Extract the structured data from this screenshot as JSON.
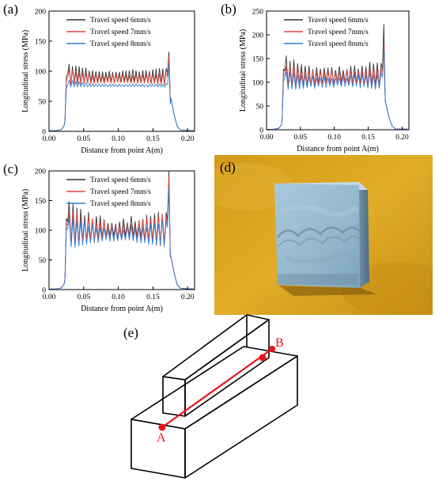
{
  "panels": {
    "a": "(a)",
    "b": "(b)",
    "c": "(c)",
    "d": "(d)",
    "e": "(e)"
  },
  "schematic": {
    "point_a": "A",
    "point_b": "B"
  },
  "colors": {
    "series_6": "#333333",
    "series_7": "#e8403a",
    "series_8": "#2f7fd0",
    "photo_background": "#d9a520",
    "path_line": "#e8141c"
  },
  "chart_data": [
    {
      "type": "line",
      "panel": "a",
      "xlabel": "Distance from point A(m)",
      "ylabel": "Longitudinal stress (MPa)",
      "xlim": [
        0,
        0.21
      ],
      "ylim": [
        0,
        200
      ],
      "xticks": [
        "0.00",
        "0.05",
        "0.10",
        "0.15",
        "0.20"
      ],
      "yticks": [
        "0",
        "50",
        "100",
        "150",
        "200"
      ],
      "legend_position": "top-center",
      "start_x": 0.025,
      "end_x": 0.175,
      "series": [
        {
          "name": "Travel speed 6mm/s",
          "plateau": 90,
          "amp": 14,
          "start_peak": 115,
          "end_peak": 132,
          "cycles": 30,
          "taper": 0.25
        },
        {
          "name": "Travel speed 7mm/s",
          "plateau": 86,
          "amp": 10,
          "start_peak": 105,
          "end_peak": 125,
          "cycles": 30,
          "taper": 0.3
        },
        {
          "name": "Travel speed 8mm/s",
          "plateau": 76,
          "amp": 3,
          "start_peak": 90,
          "end_peak": 112,
          "cycles": 30,
          "taper": 0.3
        }
      ]
    },
    {
      "type": "line",
      "panel": "b",
      "xlabel": "Distance from point A(m)",
      "ylabel": "Longitudinal stress (MPa)",
      "xlim": [
        0,
        0.21
      ],
      "ylim": [
        0,
        250
      ],
      "xticks": [
        "0.00",
        "0.05",
        "0.10",
        "0.15",
        "0.20"
      ],
      "yticks": [
        "0",
        "50",
        "100",
        "150",
        "200",
        "250"
      ],
      "legend_position": "top-center",
      "start_x": 0.025,
      "end_x": 0.175,
      "series": [
        {
          "name": "Travel speed 6mm/s",
          "plateau": 112,
          "amp": 30,
          "start_peak": 160,
          "end_peak": 222,
          "cycles": 26,
          "taper": 0.45
        },
        {
          "name": "Travel speed 7mm/s",
          "plateau": 108,
          "amp": 22,
          "start_peak": 140,
          "end_peak": 182,
          "cycles": 26,
          "taper": 0.45
        },
        {
          "name": "Travel speed 8mm/s",
          "plateau": 100,
          "amp": 20,
          "start_peak": 128,
          "end_peak": 168,
          "cycles": 26,
          "taper": 0.45
        }
      ]
    },
    {
      "type": "line",
      "panel": "c",
      "xlabel": "Distance from point A(m)",
      "ylabel": "Longitudinal stress (MPa)",
      "xlim": [
        0,
        0.21
      ],
      "ylim": [
        0,
        200
      ],
      "xticks": [
        "0.00",
        "0.05",
        "0.10",
        "0.15",
        "0.20"
      ],
      "yticks": [
        "0",
        "50",
        "100",
        "150",
        "200"
      ],
      "legend_position": "top-center",
      "start_x": 0.025,
      "end_x": 0.175,
      "series": [
        {
          "name": "Travel speed 6mm/s",
          "plateau": 100,
          "amp": 35,
          "start_peak": 150,
          "end_peak": 205,
          "cycles": 26,
          "taper": 0.55
        },
        {
          "name": "Travel speed 7mm/s",
          "plateau": 97,
          "amp": 28,
          "start_peak": 140,
          "end_peak": 190,
          "cycles": 26,
          "taper": 0.55
        },
        {
          "name": "Travel speed 8mm/s",
          "plateau": 92,
          "amp": 25,
          "start_peak": 130,
          "end_peak": 172,
          "cycles": 26,
          "taper": 0.55
        }
      ]
    }
  ]
}
